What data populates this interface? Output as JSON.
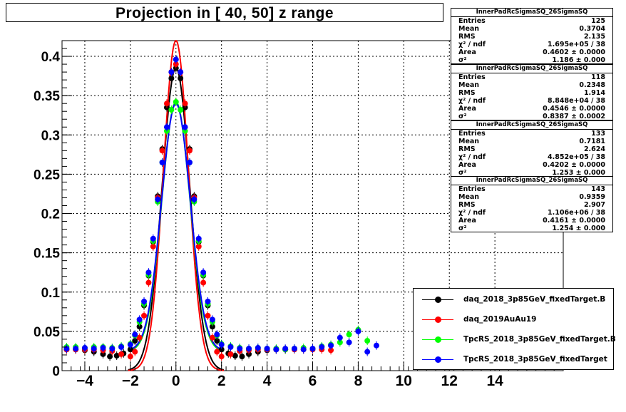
{
  "title": "Projection in [  40,  50] z range",
  "chart_data": {
    "type": "scatter",
    "xlim": [
      -5,
      17
    ],
    "ylim": [
      0,
      0.42
    ],
    "x_ticks": [
      "−4",
      "−2",
      "0",
      "2",
      "4",
      "6",
      "8",
      "10",
      "12",
      "14"
    ],
    "x_tick_values": [
      -4,
      -2,
      0,
      2,
      4,
      6,
      8,
      10,
      12,
      14
    ],
    "y_ticks": [
      "0",
      "0.05",
      "0.1",
      "0.15",
      "0.2",
      "0.25",
      "0.3",
      "0.35",
      "0.4"
    ],
    "y_tick_values": [
      0,
      0.05,
      0.1,
      0.15,
      0.2,
      0.25,
      0.3,
      0.35,
      0.4
    ],
    "grid": true,
    "legend_position": "bottom-right",
    "series": [
      {
        "name": "daq_2018_3p85GeV_fixedTarget.B",
        "color": "#000000",
        "fit": {
          "amp": 0.385,
          "mean": 0.0,
          "sigma": 0.61,
          "base": 0.0
        },
        "tail": {
          "center": 2.9,
          "depth": 0.009,
          "width": 0.35,
          "level": 0.027,
          "to": 5.0
        },
        "x": [
          -4.8,
          -4.4,
          -4.0,
          -3.6,
          -3.2,
          -2.9,
          -2.6,
          -2.3,
          -2.0,
          -1.8,
          -1.6,
          -1.4,
          -1.2,
          -1.0,
          -0.8,
          -0.6,
          -0.4,
          -0.2,
          0.0,
          0.2,
          0.4,
          0.6,
          0.8,
          1.0,
          1.2,
          1.4,
          1.6,
          1.8,
          2.0,
          2.3,
          2.6,
          2.9,
          3.2,
          3.6,
          4.0,
          4.4,
          4.8
        ],
        "y": [
          0.027,
          0.027,
          0.026,
          0.024,
          0.021,
          0.018,
          0.019,
          0.022,
          0.027,
          0.038,
          0.056,
          0.083,
          0.121,
          0.164,
          0.222,
          0.282,
          0.335,
          0.372,
          0.385,
          0.372,
          0.335,
          0.282,
          0.222,
          0.164,
          0.121,
          0.083,
          0.056,
          0.038,
          0.027,
          0.022,
          0.019,
          0.018,
          0.021,
          0.024,
          0.026,
          0.027,
          0.027
        ]
      },
      {
        "name": "daq_2019AuAu19",
        "color": "#ff0000",
        "fit": {
          "amp": 0.42,
          "mean": 0.0,
          "sigma": 0.55,
          "base": 0.0
        },
        "x": [
          -4.8,
          -4.4,
          -4.0,
          -3.6,
          -3.2,
          -2.8,
          -2.4,
          -2.0,
          -1.8,
          -1.6,
          -1.4,
          -1.2,
          -1.0,
          -0.8,
          -0.6,
          -0.4,
          -0.2,
          0.0,
          0.2,
          0.4,
          0.6,
          0.8,
          1.0,
          1.2,
          1.4,
          1.6,
          1.8,
          2.0,
          2.4,
          2.8,
          3.2,
          3.6,
          4.0,
          4.4,
          4.8,
          5.2,
          5.6,
          6.0,
          6.4,
          6.8
        ],
        "y": [
          0.027,
          0.027,
          0.027,
          0.027,
          0.026,
          0.025,
          0.021,
          0.018,
          0.024,
          0.042,
          0.07,
          0.112,
          0.158,
          0.22,
          0.28,
          0.34,
          0.38,
          0.39,
          0.38,
          0.34,
          0.28,
          0.22,
          0.158,
          0.112,
          0.07,
          0.042,
          0.024,
          0.018,
          0.021,
          0.025,
          0.026,
          0.027,
          0.027,
          0.027,
          0.027,
          0.027,
          0.027,
          0.027,
          0.027,
          0.026
        ]
      },
      {
        "name": "TpcRS_2018_3p85GeV_fixedTarget.B",
        "color": "#00ff00",
        "fit": {
          "amp": 0.318,
          "mean": 0.0,
          "sigma": 0.62,
          "base": 0.024
        },
        "x": [
          -4.8,
          -4.4,
          -4.0,
          -3.6,
          -3.2,
          -2.8,
          -2.4,
          -2.0,
          -1.8,
          -1.6,
          -1.4,
          -1.2,
          -1.0,
          -0.8,
          -0.6,
          -0.4,
          -0.2,
          0.0,
          0.2,
          0.4,
          0.6,
          0.8,
          1.0,
          1.2,
          1.4,
          1.6,
          1.8,
          2.0,
          2.4,
          2.8,
          3.2,
          3.6,
          4.0,
          4.4,
          4.8,
          5.2,
          5.6,
          6.0,
          6.4,
          6.8,
          7.2,
          7.6,
          8.0,
          8.4
        ],
        "y": [
          0.03,
          0.03,
          0.029,
          0.03,
          0.03,
          0.029,
          0.031,
          0.034,
          0.045,
          0.062,
          0.085,
          0.122,
          0.165,
          0.215,
          0.265,
          0.305,
          0.332,
          0.342,
          0.332,
          0.305,
          0.265,
          0.215,
          0.165,
          0.122,
          0.085,
          0.062,
          0.045,
          0.034,
          0.031,
          0.029,
          0.028,
          0.029,
          0.028,
          0.028,
          0.027,
          0.028,
          0.029,
          0.028,
          0.031,
          0.033,
          0.036,
          0.046,
          0.052,
          0.038
        ]
      },
      {
        "name": "TpcRS_2018_3p85GeV_fixedTarget",
        "color": "#0000ff",
        "fit": {
          "amp": 0.315,
          "mean": 0.0,
          "sigma": 0.63,
          "base": 0.025
        },
        "x": [
          -4.8,
          -4.4,
          -4.0,
          -3.6,
          -3.2,
          -2.8,
          -2.4,
          -2.0,
          -1.8,
          -1.6,
          -1.4,
          -1.2,
          -1.0,
          -0.8,
          -0.6,
          -0.4,
          -0.2,
          0.0,
          0.2,
          0.4,
          0.6,
          0.8,
          1.0,
          1.2,
          1.4,
          1.6,
          1.8,
          2.0,
          2.4,
          2.8,
          3.2,
          3.6,
          4.0,
          4.4,
          4.8,
          5.2,
          5.6,
          6.0,
          6.4,
          6.8,
          7.2,
          7.6,
          8.0,
          8.4,
          8.8
        ],
        "y": [
          0.028,
          0.028,
          0.029,
          0.028,
          0.029,
          0.028,
          0.03,
          0.033,
          0.046,
          0.065,
          0.088,
          0.125,
          0.168,
          0.218,
          0.265,
          0.31,
          0.38,
          0.396,
          0.38,
          0.31,
          0.265,
          0.218,
          0.168,
          0.125,
          0.088,
          0.065,
          0.046,
          0.033,
          0.03,
          0.028,
          0.028,
          0.029,
          0.028,
          0.027,
          0.028,
          0.028,
          0.027,
          0.028,
          0.03,
          0.032,
          0.042,
          0.036,
          0.05,
          0.024,
          0.032
        ]
      }
    ]
  },
  "stat_boxes": [
    {
      "header": "InnerPadRcSigmaSQ_26SigmaSQ",
      "rows": [
        {
          "k": "Entries",
          "v": "125"
        },
        {
          "k": "Mean",
          "v": "0.3704"
        },
        {
          "k": "RMS",
          "v": "2.135"
        },
        {
          "k": "χ² / ndf",
          "v": "1.695e+05 / 38"
        },
        {
          "k": "Area",
          "v": "0.4602 ± 0.0000"
        },
        {
          "k": "σ²",
          "v": "1.186 ± 0.000"
        }
      ]
    },
    {
      "header": "InnerPadRcSigmaSQ_26SigmaSQ",
      "rows": [
        {
          "k": "Entries",
          "v": "118"
        },
        {
          "k": "Mean",
          "v": "0.2348"
        },
        {
          "k": "RMS",
          "v": "1.914"
        },
        {
          "k": "χ² / ndf",
          "v": "8.848e+04 / 38"
        },
        {
          "k": "Area",
          "v": "0.4546 ± 0.0000"
        },
        {
          "k": "σ²",
          "v": "0.8387 ± 0.0002"
        }
      ]
    },
    {
      "header": "InnerPadRcSigmaSQ_26SigmaSQ",
      "rows": [
        {
          "k": "Entries",
          "v": "133"
        },
        {
          "k": "Mean",
          "v": "0.7181"
        },
        {
          "k": "RMS",
          "v": "2.624"
        },
        {
          "k": "χ² / ndf",
          "v": "4.852e+05 / 38"
        },
        {
          "k": "Area",
          "v": "0.4202 ± 0.0000"
        },
        {
          "k": "σ²",
          "v": "1.253 ± 0.000"
        }
      ]
    },
    {
      "header": "InnerPadRcSigmaSQ_26SigmaSQ",
      "rows": [
        {
          "k": "Entries",
          "v": "143"
        },
        {
          "k": "Mean",
          "v": "0.9359"
        },
        {
          "k": "RMS",
          "v": "2.907"
        },
        {
          "k": "χ² / ndf",
          "v": "1.106e+06 / 38"
        },
        {
          "k": "Area",
          "v": "0.4161 ± 0.0000"
        },
        {
          "k": "σ²",
          "v": "1.254 ± 0.000"
        }
      ]
    }
  ],
  "legend": [
    {
      "label": "daq_2018_3p85GeV_fixedTarget.B",
      "color": "#000000"
    },
    {
      "label": "daq_2019AuAu19",
      "color": "#ff0000"
    },
    {
      "label": "TpcRS_2018_3p85GeV_fixedTarget.B",
      "color": "#00ff00"
    },
    {
      "label": "TpcRS_2018_3p85GeV_fixedTarget",
      "color": "#0000ff"
    }
  ]
}
